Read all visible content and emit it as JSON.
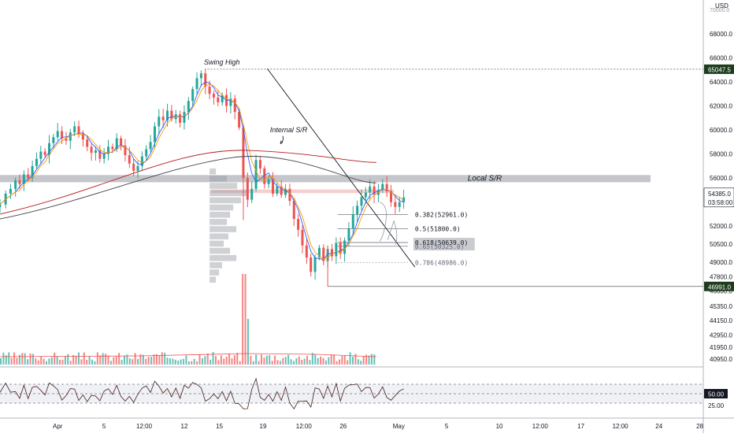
{
  "chart_data": {
    "type": "candlestick",
    "currency": "USD",
    "y_range": [
      40300,
      70800
    ],
    "y_ticks": [
      "68000.0",
      "66000.0",
      "64000.0",
      "62000.0",
      "60000.0",
      "58000.0",
      "56000.0",
      "54000.0",
      "52000.0",
      "50500.0",
      "49000.0",
      "47800.0",
      "46600.0",
      "45350.0",
      "44150.0",
      "42950.0",
      "41950.0",
      "40950.0"
    ],
    "x_ticks": [
      "Apr",
      "5",
      "12:00",
      "12",
      "15",
      "19",
      "12:00",
      "26",
      "May",
      "5",
      "10",
      "12:00",
      "17",
      "12:00",
      "24",
      "28"
    ],
    "price_badges": {
      "swing_high": "65047.5",
      "current": "54385.0",
      "countdown": "03:58:00",
      "swing_low": "46991.0"
    },
    "annotations": {
      "swing_high_label": "Swing High",
      "internal_sr_label": "Internal S/R",
      "local_sr_label": "Local S/R"
    },
    "fib_levels": [
      {
        "label": "0.382(52961.0)",
        "price": 52961
      },
      {
        "label": "0.5(51800.0)",
        "price": 51800
      },
      {
        "label": "0.618(50639.0)",
        "price": 50639
      },
      {
        "label": "0.65(50325.0)",
        "price": 50325
      },
      {
        "label": "0.786(48986.0)",
        "price": 48986
      }
    ],
    "local_sr_zone": [
      55650,
      56250
    ],
    "internal_sr_zone": [
      54750,
      55050
    ],
    "trendline": [
      [
        0.38,
        65100
      ],
      [
        0.59,
        48600
      ]
    ],
    "rsi": {
      "levels": [
        70,
        50,
        30
      ],
      "badge": "50.00",
      "ticks": [
        "50.00",
        "25.00"
      ]
    },
    "colors": {
      "up": "#26a69a",
      "down": "#ef5350",
      "ema_fast": "#2962ff",
      "ema_mid": "#ff9800",
      "ma_long": "#b71c1c",
      "ma_slow": "#444444",
      "volume_ma": "#ef5350",
      "badge": "#1e3d1e"
    },
    "candle_path": [
      [
        0.0,
        53800
      ],
      [
        0.008,
        54700
      ],
      [
        0.015,
        55100
      ],
      [
        0.022,
        55800
      ],
      [
        0.028,
        55500
      ],
      [
        0.034,
        56300
      ],
      [
        0.04,
        56000
      ],
      [
        0.046,
        57000
      ],
      [
        0.052,
        57600
      ],
      [
        0.058,
        58200
      ],
      [
        0.064,
        57900
      ],
      [
        0.07,
        58900
      ],
      [
        0.076,
        59400
      ],
      [
        0.082,
        59900
      ],
      [
        0.088,
        59300
      ],
      [
        0.094,
        59100
      ],
      [
        0.1,
        59800
      ],
      [
        0.106,
        60300
      ],
      [
        0.112,
        59700
      ],
      [
        0.118,
        59200
      ],
      [
        0.124,
        58600
      ],
      [
        0.13,
        58100
      ],
      [
        0.136,
        58300
      ],
      [
        0.142,
        57600
      ],
      [
        0.148,
        58000
      ],
      [
        0.154,
        58600
      ],
      [
        0.16,
        58400
      ],
      [
        0.166,
        59300
      ],
      [
        0.172,
        58700
      ],
      [
        0.178,
        57900
      ],
      [
        0.184,
        57200
      ],
      [
        0.19,
        56600
      ],
      [
        0.196,
        57000
      ],
      [
        0.202,
        57800
      ],
      [
        0.208,
        58400
      ],
      [
        0.214,
        59000
      ],
      [
        0.22,
        60300
      ],
      [
        0.226,
        61100
      ],
      [
        0.232,
        60800
      ],
      [
        0.238,
        61600
      ],
      [
        0.244,
        60900
      ],
      [
        0.25,
        61300
      ],
      [
        0.256,
        60600
      ],
      [
        0.262,
        61500
      ],
      [
        0.268,
        62400
      ],
      [
        0.274,
        63400
      ],
      [
        0.28,
        64300
      ],
      [
        0.286,
        64700
      ],
      [
        0.292,
        63600
      ],
      [
        0.298,
        63000
      ],
      [
        0.304,
        62700
      ],
      [
        0.31,
        62300
      ],
      [
        0.316,
        62900
      ],
      [
        0.322,
        62000
      ],
      [
        0.328,
        62600
      ],
      [
        0.334,
        61500
      ],
      [
        0.34,
        60200
      ],
      [
        0.346,
        56000
      ],
      [
        0.352,
        54200
      ],
      [
        0.358,
        55100
      ],
      [
        0.364,
        57500
      ],
      [
        0.37,
        56800
      ],
      [
        0.376,
        55500
      ],
      [
        0.382,
        55900
      ],
      [
        0.388,
        54700
      ],
      [
        0.394,
        55300
      ],
      [
        0.4,
        54600
      ],
      [
        0.406,
        55100
      ],
      [
        0.412,
        54100
      ],
      [
        0.418,
        52600
      ],
      [
        0.424,
        51700
      ],
      [
        0.43,
        50400
      ],
      [
        0.436,
        49400
      ],
      [
        0.442,
        48200
      ],
      [
        0.448,
        49400
      ],
      [
        0.454,
        50200
      ],
      [
        0.46,
        49100
      ],
      [
        0.466,
        50100
      ],
      [
        0.472,
        49500
      ],
      [
        0.478,
        50600
      ],
      [
        0.484,
        49700
      ],
      [
        0.49,
        50800
      ],
      [
        0.496,
        51800
      ],
      [
        0.502,
        53000
      ],
      [
        0.508,
        53700
      ],
      [
        0.514,
        54400
      ],
      [
        0.52,
        54800
      ],
      [
        0.526,
        55300
      ],
      [
        0.532,
        54600
      ],
      [
        0.538,
        55000
      ],
      [
        0.544,
        55500
      ],
      [
        0.55,
        54900
      ],
      [
        0.556,
        54000
      ],
      [
        0.562,
        53600
      ],
      [
        0.568,
        54000
      ],
      [
        0.574,
        54385
      ]
    ]
  }
}
